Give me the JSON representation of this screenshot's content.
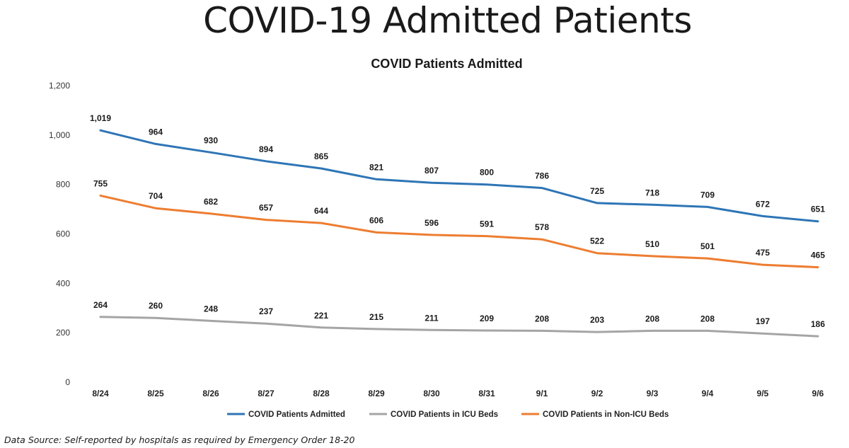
{
  "page": {
    "title": "COVID-19 Admitted Patients",
    "source_note": "Data Source: Self-reported by hospitals as required by Emergency Order 18-20"
  },
  "chart_data": {
    "type": "line",
    "title": "COVID Patients Admitted",
    "xlabel": "",
    "ylabel": "",
    "categories": [
      "8/24",
      "8/25",
      "8/26",
      "8/27",
      "8/28",
      "8/29",
      "8/30",
      "8/31",
      "9/1",
      "9/2",
      "9/3",
      "9/4",
      "9/5",
      "9/6"
    ],
    "ylim": [
      0,
      1200
    ],
    "yticks": [
      0,
      200,
      400,
      600,
      800,
      1000,
      1200
    ],
    "ytick_labels": [
      "0",
      "200",
      "400",
      "600",
      "800",
      "1,000",
      "1,200"
    ],
    "grid": false,
    "legend_position": "bottom",
    "data_labels": true,
    "series": [
      {
        "name": "COVID Patients Admitted",
        "color": "#2e75b6",
        "values": [
          1019,
          964,
          930,
          894,
          865,
          821,
          807,
          800,
          786,
          725,
          718,
          709,
          672,
          651
        ],
        "labels": [
          "1,019",
          "964",
          "930",
          "894",
          "865",
          "821",
          "807",
          "800",
          "786",
          "725",
          "718",
          "709",
          "672",
          "651"
        ]
      },
      {
        "name": "COVID Patients in ICU Beds",
        "color": "#a5a5a5",
        "values": [
          264,
          260,
          248,
          237,
          221,
          215,
          211,
          209,
          208,
          203,
          208,
          208,
          197,
          186
        ],
        "labels": [
          "264",
          "260",
          "248",
          "237",
          "221",
          "215",
          "211",
          "209",
          "208",
          "203",
          "208",
          "208",
          "197",
          "186"
        ]
      },
      {
        "name": "COVID Patients in Non-ICU Beds",
        "color": "#ed7d31",
        "values": [
          755,
          704,
          682,
          657,
          644,
          606,
          596,
          591,
          578,
          522,
          510,
          501,
          475,
          465
        ],
        "labels": [
          "755",
          "704",
          "682",
          "657",
          "644",
          "606",
          "596",
          "591",
          "578",
          "522",
          "510",
          "501",
          "475",
          "465"
        ]
      }
    ]
  }
}
